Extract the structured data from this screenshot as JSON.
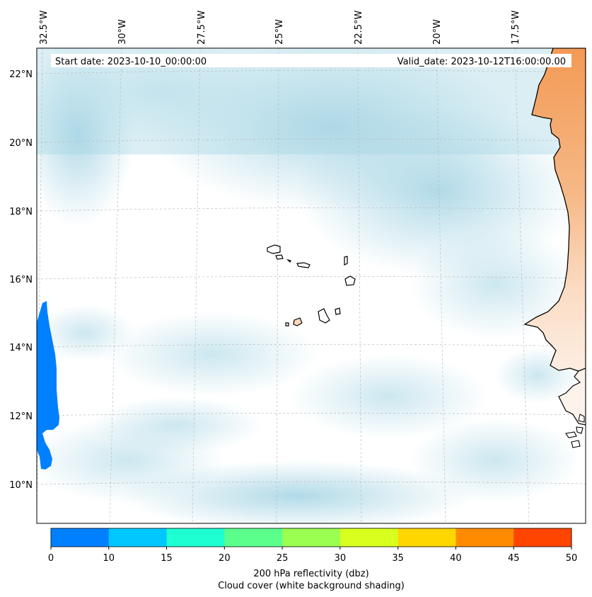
{
  "map": {
    "start_date": "Start date: 2023-10-10_00:00:00",
    "valid_date": "Valid_date: 2023-10-12T16:00:00.00",
    "longitude_ticks": [
      "32.5°W",
      "30°W",
      "27.5°W",
      "25°W",
      "22.5°W",
      "20°W",
      "17.5°W"
    ],
    "latitude_ticks": [
      "22°N",
      "20°N",
      "18°N",
      "16°N",
      "14°N",
      "12°N",
      "10°N"
    ],
    "land_color": "#f4a060",
    "coast_color": "#000000",
    "cloud_color": "#add8e6",
    "reflectivity_patch_color": "#0080ff"
  },
  "colorbar": {
    "bounds": [
      "0",
      "10",
      "15",
      "20",
      "25",
      "30",
      "35",
      "40",
      "45",
      "50"
    ],
    "colors": [
      "#0080ff",
      "#00c8ff",
      "#1effd2",
      "#5aff8c",
      "#9aff50",
      "#d8ff1e",
      "#ffd700",
      "#ff8c00",
      "#ff4500"
    ],
    "label_line1": "200 hPa reflectivity (dbz)",
    "label_line2": "Cloud cover (white background shading)"
  }
}
